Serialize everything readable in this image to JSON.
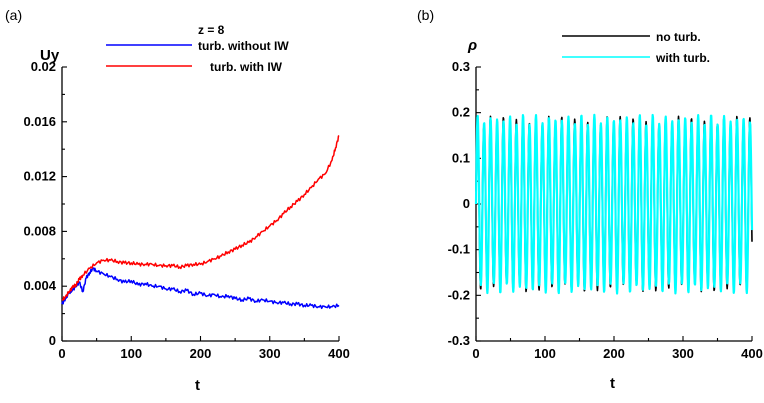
{
  "chart_data": [
    {
      "type": "line",
      "panel_label": "(a)",
      "annotation": "z = 8",
      "xlabel": "t",
      "ylabel": "Uy",
      "xlim": [
        0,
        400
      ],
      "ylim": [
        0,
        0.02
      ],
      "x_ticks": [
        "0",
        "100",
        "200",
        "300",
        "400"
      ],
      "y_ticks": [
        "0",
        "0.004",
        "0.008",
        "0.012",
        "0.016",
        "0.02"
      ],
      "legend_position": "top-right",
      "grid": false,
      "series": [
        {
          "name": "turb. without IW",
          "color": "#0000ff",
          "x": [
            0,
            5,
            10,
            15,
            20,
            25,
            30,
            35,
            40,
            45,
            50,
            60,
            70,
            80,
            90,
            100,
            110,
            120,
            130,
            140,
            150,
            160,
            170,
            180,
            190,
            200,
            210,
            220,
            230,
            240,
            250,
            260,
            270,
            280,
            290,
            300,
            310,
            320,
            330,
            340,
            350,
            360,
            370,
            380,
            390,
            400
          ],
          "y": [
            0.0027,
            0.0031,
            0.0035,
            0.0037,
            0.004,
            0.0043,
            0.0036,
            0.0046,
            0.005,
            0.0053,
            0.0051,
            0.0049,
            0.0047,
            0.0045,
            0.0043,
            0.0044,
            0.0041,
            0.0042,
            0.004,
            0.004,
            0.0038,
            0.0038,
            0.0036,
            0.0037,
            0.0034,
            0.0035,
            0.0033,
            0.0034,
            0.0032,
            0.0033,
            0.0031,
            0.003,
            0.0031,
            0.0029,
            0.003,
            0.0029,
            0.0028,
            0.0028,
            0.0027,
            0.0027,
            0.0026,
            0.0026,
            0.0025,
            0.0025,
            0.0025,
            0.0026
          ]
        },
        {
          "name": "turb. with IW",
          "color": "#ff0000",
          "x": [
            0,
            5,
            10,
            15,
            20,
            25,
            30,
            40,
            50,
            60,
            70,
            80,
            90,
            100,
            110,
            120,
            130,
            140,
            150,
            160,
            170,
            180,
            190,
            200,
            210,
            220,
            230,
            240,
            250,
            260,
            270,
            280,
            290,
            300,
            310,
            320,
            330,
            340,
            350,
            360,
            370,
            380,
            390,
            395,
            400
          ],
          "y": [
            0.003,
            0.0032,
            0.0036,
            0.0039,
            0.0041,
            0.0045,
            0.0048,
            0.0053,
            0.0057,
            0.0059,
            0.0059,
            0.0058,
            0.0057,
            0.0057,
            0.0056,
            0.0056,
            0.0056,
            0.0055,
            0.0055,
            0.0055,
            0.0054,
            0.0055,
            0.0056,
            0.0056,
            0.0058,
            0.006,
            0.0062,
            0.0065,
            0.0067,
            0.007,
            0.0072,
            0.0076,
            0.008,
            0.0084,
            0.0088,
            0.0093,
            0.0098,
            0.0102,
            0.0107,
            0.0112,
            0.0118,
            0.0122,
            0.0132,
            0.0141,
            0.015
          ]
        }
      ]
    },
    {
      "type": "line",
      "panel_label": "(b)",
      "xlabel": "t",
      "ylabel": "ρ",
      "xlim": [
        0,
        400
      ],
      "ylim": [
        -0.3,
        0.3
      ],
      "x_ticks": [
        "0",
        "100",
        "200",
        "300",
        "400"
      ],
      "y_ticks": [
        "-0.3",
        "-0.2",
        "-0.1",
        "0",
        "0.1",
        "0.2",
        "0.3"
      ],
      "legend_position": "top-right",
      "grid": false,
      "oscillation": {
        "period": 9.4,
        "amplitude": 0.185,
        "cycles_shown": 42
      },
      "series": [
        {
          "name": "no turb.",
          "color": "#000000"
        },
        {
          "name": "with turb.",
          "color": "#00ffff"
        }
      ]
    }
  ]
}
